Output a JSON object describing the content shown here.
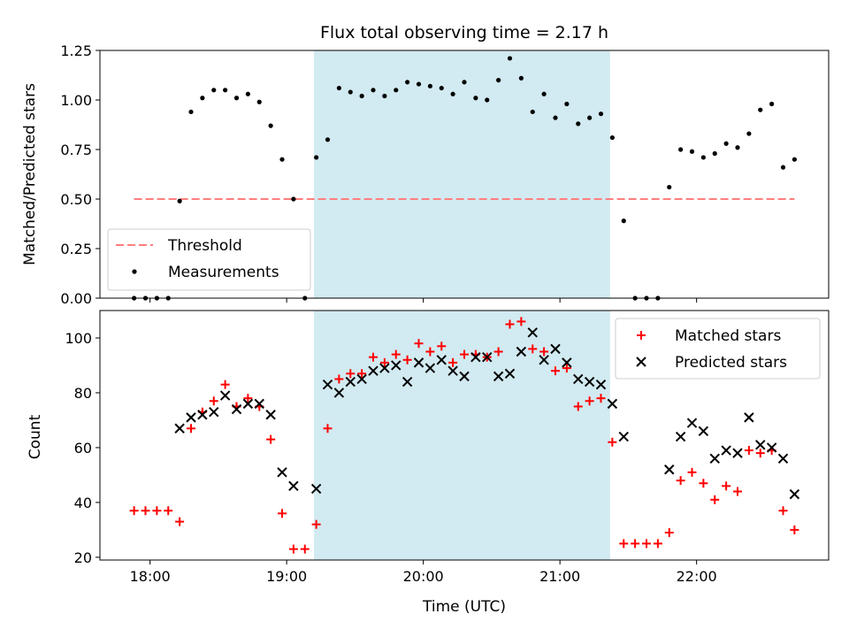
{
  "figure": {
    "title": "Flux total observing time = 2.17 h",
    "observing_window": {
      "start": "19:12",
      "end": "21:22",
      "color": "#add8e6"
    }
  },
  "chart_data": [
    {
      "type": "scatter",
      "title": "Flux total observing time = 2.17 h",
      "xlabel": "",
      "ylabel": "Matched/Predicted stars",
      "xlim": [
        "17:38",
        "22:58"
      ],
      "ylim": [
        0.0,
        1.25
      ],
      "xticks": [
        "18:00",
        "19:00",
        "20:00",
        "21:00",
        "22:00"
      ],
      "yticks": [
        "0.00",
        "0.25",
        "0.50",
        "0.75",
        "1.00",
        "1.25"
      ],
      "show_x_tick_labels": false,
      "grid": false,
      "legend": {
        "placement": "lower-left",
        "entries": [
          "Threshold",
          "Measurements"
        ]
      },
      "threshold": {
        "name": "Threshold",
        "value": 0.5,
        "x_range": [
          "17:53",
          "22:43"
        ],
        "color": "#ff7f7f",
        "style": "dashed"
      },
      "series": [
        {
          "name": "Measurements",
          "color": "#000000",
          "marker": "dot",
          "points": [
            [
              "17:53",
              0.0
            ],
            [
              "17:58",
              0.0
            ],
            [
              "18:03",
              0.0
            ],
            [
              "18:08",
              0.0
            ],
            [
              "18:13",
              0.49
            ],
            [
              "18:18",
              0.94
            ],
            [
              "18:23",
              1.01
            ],
            [
              "18:28",
              1.05
            ],
            [
              "18:33",
              1.05
            ],
            [
              "18:38",
              1.01
            ],
            [
              "18:43",
              1.03
            ],
            [
              "18:48",
              0.99
            ],
            [
              "18:53",
              0.87
            ],
            [
              "18:58",
              0.7
            ],
            [
              "19:03",
              0.5
            ],
            [
              "19:08",
              0.0
            ],
            [
              "19:13",
              0.71
            ],
            [
              "19:18",
              0.8
            ],
            [
              "19:23",
              1.06
            ],
            [
              "19:28",
              1.04
            ],
            [
              "19:33",
              1.02
            ],
            [
              "19:38",
              1.05
            ],
            [
              "19:43",
              1.02
            ],
            [
              "19:48",
              1.05
            ],
            [
              "19:53",
              1.09
            ],
            [
              "19:58",
              1.08
            ],
            [
              "20:03",
              1.07
            ],
            [
              "20:08",
              1.06
            ],
            [
              "20:13",
              1.03
            ],
            [
              "20:18",
              1.09
            ],
            [
              "20:23",
              1.01
            ],
            [
              "20:28",
              1.0
            ],
            [
              "20:33",
              1.1
            ],
            [
              "20:38",
              1.21
            ],
            [
              "20:43",
              1.11
            ],
            [
              "20:48",
              0.94
            ],
            [
              "20:53",
              1.03
            ],
            [
              "20:58",
              0.91
            ],
            [
              "21:03",
              0.98
            ],
            [
              "21:08",
              0.88
            ],
            [
              "21:13",
              0.91
            ],
            [
              "21:18",
              0.93
            ],
            [
              "21:23",
              0.81
            ],
            [
              "21:28",
              0.39
            ],
            [
              "21:33",
              0.0
            ],
            [
              "21:38",
              0.0
            ],
            [
              "21:43",
              0.0
            ],
            [
              "21:48",
              0.56
            ],
            [
              "21:53",
              0.75
            ],
            [
              "21:58",
              0.74
            ],
            [
              "22:03",
              0.71
            ],
            [
              "22:08",
              0.73
            ],
            [
              "22:13",
              0.78
            ],
            [
              "22:18",
              0.76
            ],
            [
              "22:23",
              0.83
            ],
            [
              "22:28",
              0.95
            ],
            [
              "22:33",
              0.98
            ],
            [
              "22:38",
              0.66
            ],
            [
              "22:43",
              0.7
            ]
          ]
        }
      ]
    },
    {
      "type": "scatter",
      "title": "",
      "xlabel": "Time (UTC)",
      "ylabel": "Count",
      "xlim": [
        "17:38",
        "22:58"
      ],
      "ylim": [
        19,
        110
      ],
      "xticks": [
        "18:00",
        "19:00",
        "20:00",
        "21:00",
        "22:00"
      ],
      "yticks": [
        "20",
        "40",
        "60",
        "80",
        "100"
      ],
      "grid": false,
      "legend": {
        "placement": "top-right",
        "entries": [
          "Matched stars",
          "Predicted stars"
        ]
      },
      "series": [
        {
          "name": "Matched stars",
          "color": "#ff0000",
          "marker": "plus",
          "points": [
            [
              "17:53",
              37
            ],
            [
              "17:58",
              37
            ],
            [
              "18:03",
              37
            ],
            [
              "18:08",
              37
            ],
            [
              "18:13",
              33
            ],
            [
              "18:18",
              67
            ],
            [
              "18:23",
              73
            ],
            [
              "18:28",
              77
            ],
            [
              "18:33",
              83
            ],
            [
              "18:38",
              75
            ],
            [
              "18:43",
              78
            ],
            [
              "18:48",
              75
            ],
            [
              "18:53",
              63
            ],
            [
              "18:58",
              36
            ],
            [
              "19:03",
              23
            ],
            [
              "19:08",
              23
            ],
            [
              "19:13",
              32
            ],
            [
              "19:18",
              67
            ],
            [
              "19:23",
              85
            ],
            [
              "19:28",
              87
            ],
            [
              "19:33",
              87
            ],
            [
              "19:38",
              93
            ],
            [
              "19:43",
              91
            ],
            [
              "19:48",
              94
            ],
            [
              "19:53",
              92
            ],
            [
              "19:58",
              98
            ],
            [
              "20:03",
              95
            ],
            [
              "20:08",
              97
            ],
            [
              "20:13",
              91
            ],
            [
              "20:18",
              94
            ],
            [
              "20:23",
              94
            ],
            [
              "20:28",
              93
            ],
            [
              "20:33",
              95
            ],
            [
              "20:38",
              105
            ],
            [
              "20:43",
              106
            ],
            [
              "20:48",
              96
            ],
            [
              "20:53",
              95
            ],
            [
              "20:58",
              88
            ],
            [
              "21:03",
              89
            ],
            [
              "21:08",
              75
            ],
            [
              "21:13",
              77
            ],
            [
              "21:18",
              78
            ],
            [
              "21:23",
              62
            ],
            [
              "21:28",
              25
            ],
            [
              "21:33",
              25
            ],
            [
              "21:38",
              25
            ],
            [
              "21:43",
              25
            ],
            [
              "21:48",
              29
            ],
            [
              "21:53",
              48
            ],
            [
              "21:58",
              51
            ],
            [
              "22:03",
              47
            ],
            [
              "22:08",
              41
            ],
            [
              "22:13",
              46
            ],
            [
              "22:18",
              44
            ],
            [
              "22:23",
              59
            ],
            [
              "22:28",
              58
            ],
            [
              "22:33",
              59
            ],
            [
              "22:38",
              37
            ],
            [
              "22:43",
              30
            ]
          ]
        },
        {
          "name": "Predicted stars",
          "color": "#000000",
          "marker": "x",
          "points": [
            [
              "18:13",
              67
            ],
            [
              "18:18",
              71
            ],
            [
              "18:23",
              72
            ],
            [
              "18:28",
              73
            ],
            [
              "18:33",
              79
            ],
            [
              "18:38",
              74
            ],
            [
              "18:43",
              76
            ],
            [
              "18:48",
              76
            ],
            [
              "18:53",
              72
            ],
            [
              "18:58",
              51
            ],
            [
              "19:03",
              46
            ],
            [
              "19:13",
              45
            ],
            [
              "19:18",
              83
            ],
            [
              "19:23",
              80
            ],
            [
              "19:28",
              84
            ],
            [
              "19:33",
              85
            ],
            [
              "19:38",
              88
            ],
            [
              "19:43",
              89
            ],
            [
              "19:48",
              90
            ],
            [
              "19:53",
              84
            ],
            [
              "19:58",
              91
            ],
            [
              "20:03",
              89
            ],
            [
              "20:08",
              92
            ],
            [
              "20:13",
              88
            ],
            [
              "20:18",
              86
            ],
            [
              "20:23",
              93
            ],
            [
              "20:28",
              93
            ],
            [
              "20:33",
              86
            ],
            [
              "20:38",
              87
            ],
            [
              "20:43",
              95
            ],
            [
              "20:48",
              102
            ],
            [
              "20:53",
              92
            ],
            [
              "20:58",
              96
            ],
            [
              "21:03",
              91
            ],
            [
              "21:08",
              85
            ],
            [
              "21:13",
              84
            ],
            [
              "21:18",
              83
            ],
            [
              "21:23",
              76
            ],
            [
              "21:28",
              64
            ],
            [
              "21:48",
              52
            ],
            [
              "21:53",
              64
            ],
            [
              "21:58",
              69
            ],
            [
              "22:03",
              66
            ],
            [
              "22:08",
              56
            ],
            [
              "22:13",
              59
            ],
            [
              "22:18",
              58
            ],
            [
              "22:23",
              71
            ],
            [
              "22:28",
              61
            ],
            [
              "22:33",
              60
            ],
            [
              "22:38",
              56
            ],
            [
              "22:43",
              43
            ]
          ]
        }
      ]
    }
  ]
}
